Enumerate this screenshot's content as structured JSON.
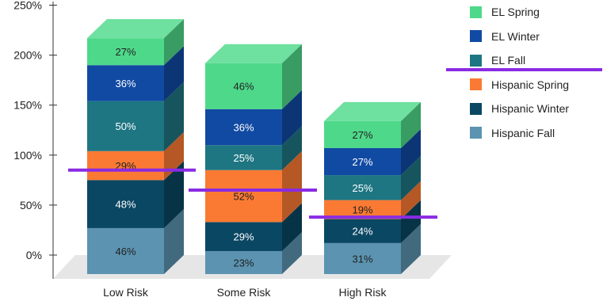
{
  "chart_data": {
    "type": "bar",
    "stacked": true,
    "style": "3d",
    "categories": [
      "Low Risk",
      "Some Risk",
      "High Risk"
    ],
    "y_ticks": [
      "0%",
      "50%",
      "100%",
      "150%",
      "200%",
      "250%"
    ],
    "ylim": [
      0,
      250
    ],
    "legend_position": "right",
    "series": [
      {
        "name": "Hispanic Fall",
        "values": [
          46,
          23,
          31
        ],
        "labels": [
          "46%",
          "23%",
          "31%"
        ],
        "color": "#5b93b0",
        "text_color": "#222222"
      },
      {
        "name": "Hispanic Winter",
        "values": [
          48,
          29,
          24
        ],
        "labels": [
          "48%",
          "29%",
          "24%"
        ],
        "color": "#0a4763",
        "text_color": "#ffffff"
      },
      {
        "name": "Hispanic Spring",
        "values": [
          29,
          52,
          19
        ],
        "labels": [
          "29%",
          "52%",
          "19%"
        ],
        "color": "#fb7a33",
        "text_color": "#222222"
      },
      {
        "name": "EL Fall",
        "values": [
          50,
          25,
          25
        ],
        "labels": [
          "50%",
          "25%",
          "25%"
        ],
        "color": "#1e7682",
        "text_color": "#ffffff"
      },
      {
        "name": "EL Winter",
        "values": [
          36,
          36,
          27
        ],
        "labels": [
          "36%",
          "36%",
          "27%"
        ],
        "color": "#114aa3",
        "text_color": "#ffffff"
      },
      {
        "name": "EL Spring",
        "values": [
          27,
          46,
          27
        ],
        "labels": [
          "27%",
          "46%",
          "27%"
        ],
        "color": "#4ed98a",
        "text_color": "#222222"
      }
    ],
    "reference_lines": [
      {
        "category": "Low Risk",
        "value": 104
      },
      {
        "category": "Some Risk",
        "value": 84
      },
      {
        "category": "High Risk",
        "value": 57
      },
      {
        "category": "legend",
        "value": 200
      }
    ],
    "reference_line_color": "#8a2be2"
  }
}
